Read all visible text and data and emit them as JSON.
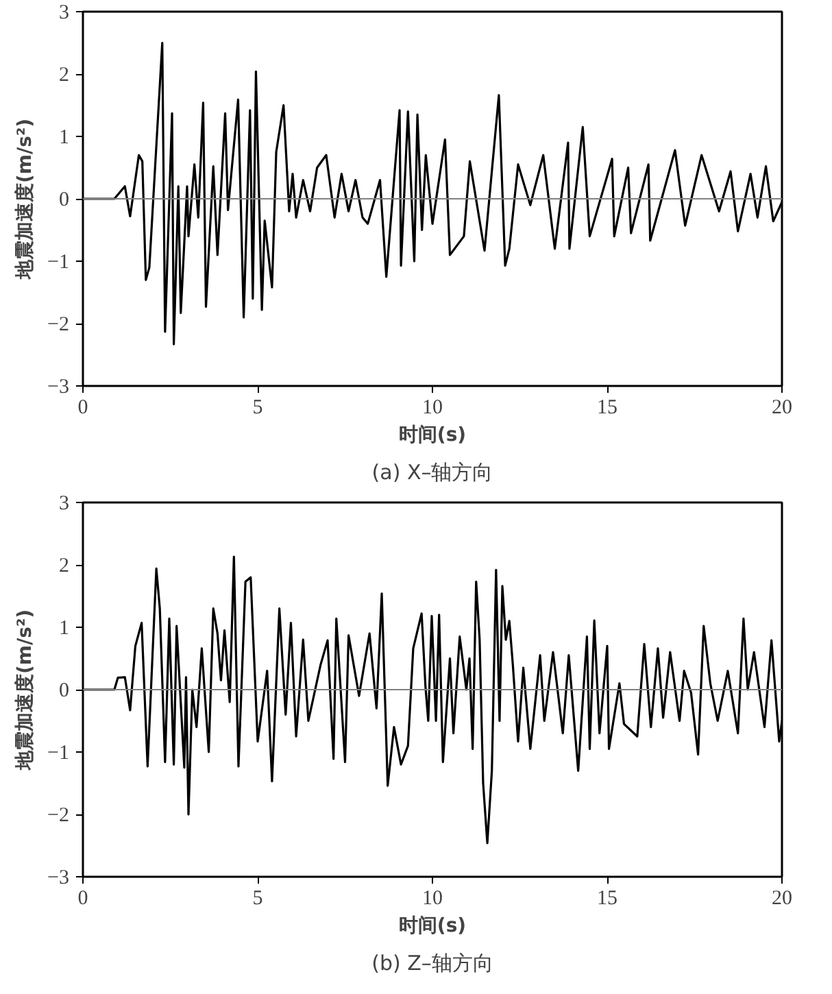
{
  "chart_data": [
    {
      "type": "line",
      "title": "(a) X–轴方向",
      "xlabel": "时间(s)",
      "ylabel": "地震加速度(m/s²)",
      "xlim": [
        0,
        20
      ],
      "ylim": [
        -3,
        3
      ],
      "xticks": [
        0,
        5,
        10,
        15,
        20
      ],
      "yticks": [
        -3,
        -2,
        -1,
        0,
        1,
        2,
        3
      ],
      "line_style": "solid",
      "ref_lines": [
        {
          "axis": "y",
          "value": 0,
          "color": "#808080"
        }
      ],
      "series": [
        {
          "color": "#000000",
          "x": [
            0,
            0.9,
            1.2,
            1.35,
            1.6,
            1.7,
            1.8,
            1.9,
            2.27,
            2.35,
            2.55,
            2.6,
            2.73,
            2.8,
            2.98,
            3.02,
            3.19,
            3.3,
            3.44,
            3.52,
            3.73,
            3.85,
            4.07,
            4.15,
            4.44,
            4.6,
            4.78,
            4.86,
            4.95,
            5.12,
            5.2,
            5.41,
            5.53,
            5.74,
            5.9,
            6.0,
            6.1,
            6.3,
            6.5,
            6.7,
            6.96,
            7.2,
            7.4,
            7.6,
            7.8,
            8.0,
            8.15,
            8.5,
            8.68,
            9.06,
            9.1,
            9.3,
            9.48,
            9.57,
            9.7,
            9.81,
            10.0,
            10.36,
            10.5,
            10.9,
            11.07,
            11.49,
            11.9,
            12.08,
            12.2,
            12.45,
            12.8,
            13.17,
            13.5,
            13.88,
            13.92,
            14.3,
            14.5,
            15.14,
            15.2,
            15.6,
            15.68,
            16.18,
            16.23,
            16.94,
            17.23,
            17.7,
            18.2,
            18.53,
            18.74,
            19.1,
            19.3,
            19.54,
            19.75,
            20
          ],
          "values": [
            0,
            0,
            0.2,
            -0.28,
            0.7,
            0.6,
            -1.3,
            -1.1,
            2.5,
            -2.13,
            1.37,
            -2.33,
            0.2,
            -1.83,
            0.2,
            -0.6,
            0.55,
            -0.3,
            1.54,
            -1.73,
            0.52,
            -0.9,
            1.37,
            -0.18,
            1.59,
            -1.9,
            1.42,
            -1.6,
            2.04,
            -1.78,
            -0.35,
            -1.42,
            0.75,
            1.5,
            -0.2,
            0.4,
            -0.3,
            0.3,
            -0.2,
            0.5,
            0.7,
            -0.3,
            0.4,
            -0.2,
            0.3,
            -0.3,
            -0.4,
            0.3,
            -1.25,
            1.42,
            -1.07,
            1.4,
            -1.0,
            1.35,
            -0.5,
            0.7,
            -0.4,
            0.95,
            -0.9,
            -0.6,
            0.6,
            -0.83,
            1.66,
            -1.07,
            -0.8,
            0.55,
            -0.1,
            0.7,
            -0.8,
            0.9,
            -0.8,
            1.15,
            -0.6,
            0.64,
            -0.6,
            0.5,
            -0.55,
            0.55,
            -0.67,
            0.78,
            -0.43,
            0.7,
            -0.2,
            0.44,
            -0.52,
            0.4,
            -0.3,
            0.52,
            -0.36,
            -0.05
          ]
        }
      ]
    },
    {
      "type": "line",
      "title": "(b) Z–轴方向",
      "xlabel": "时间(s)",
      "ylabel": "地震加速度(m/s²)",
      "xlim": [
        0,
        20
      ],
      "ylim": [
        -3,
        3
      ],
      "xticks": [
        0,
        5,
        10,
        15,
        20
      ],
      "yticks": [
        -3,
        -2,
        -1,
        0,
        1,
        2,
        3
      ],
      "line_style": "solid",
      "ref_lines": [
        {
          "axis": "y",
          "value": 0,
          "color": "#808080"
        }
      ],
      "series": [
        {
          "color": "#000000",
          "x": [
            0,
            0.9,
            1.0,
            1.2,
            1.35,
            1.5,
            1.68,
            1.85,
            2.1,
            2.2,
            2.35,
            2.47,
            2.6,
            2.68,
            2.9,
            2.95,
            3.02,
            3.13,
            3.25,
            3.4,
            3.6,
            3.73,
            3.85,
            3.95,
            4.05,
            4.2,
            4.32,
            4.45,
            4.65,
            4.8,
            5.0,
            5.27,
            5.41,
            5.62,
            5.8,
            5.95,
            6.1,
            6.3,
            6.45,
            6.8,
            7.0,
            7.17,
            7.25,
            7.5,
            7.6,
            7.9,
            8.2,
            8.4,
            8.55,
            8.72,
            8.9,
            9.1,
            9.3,
            9.45,
            9.69,
            9.8,
            9.88,
            9.98,
            10.1,
            10.19,
            10.3,
            10.5,
            10.6,
            10.78,
            10.97,
            11.06,
            11.15,
            11.25,
            11.35,
            11.45,
            11.57,
            11.7,
            11.82,
            11.92,
            12.0,
            12.1,
            12.2,
            12.3,
            12.45,
            12.6,
            12.8,
            13.08,
            13.2,
            13.45,
            13.73,
            13.9,
            14.17,
            14.42,
            14.5,
            14.63,
            14.78,
            15.0,
            15.05,
            15.35,
            15.48,
            15.86,
            16.06,
            16.25,
            16.45,
            16.6,
            16.8,
            17.07,
            17.2,
            17.4,
            17.6,
            17.76,
            17.95,
            18.16,
            18.45,
            18.74,
            18.9,
            19.02,
            19.2,
            19.5,
            19.7,
            19.92,
            20
          ],
          "values": [
            0,
            0,
            0.19,
            0.2,
            -0.33,
            0.7,
            1.07,
            -1.23,
            1.94,
            1.3,
            -1.16,
            1.14,
            -1.2,
            1.02,
            -1.25,
            0.2,
            -2.0,
            0,
            -0.6,
            0.66,
            -1.0,
            1.3,
            0.9,
            0.15,
            0.95,
            -0.2,
            2.13,
            -1.23,
            1.73,
            1.8,
            -0.83,
            0.3,
            -1.47,
            1.3,
            -0.4,
            1.07,
            -0.75,
            0.8,
            -0.5,
            0.4,
            0.79,
            -1.11,
            1.14,
            -1.16,
            0.87,
            -0.1,
            0.9,
            -0.3,
            1.54,
            -1.54,
            -0.6,
            -1.2,
            -0.9,
            0.66,
            1.22,
            0.05,
            -0.5,
            1.18,
            -0.5,
            1.2,
            -1.16,
            0.5,
            -0.7,
            0.85,
            0,
            0.5,
            -0.95,
            1.73,
            0.8,
            -1.5,
            -2.46,
            -1.3,
            1.92,
            -0.5,
            1.66,
            0.8,
            1.1,
            0.4,
            -0.83,
            0.35,
            -0.95,
            0.55,
            -0.5,
            0.6,
            -0.7,
            0.55,
            -1.3,
            0.85,
            -0.95,
            1.11,
            -0.7,
            0.7,
            -0.95,
            0.1,
            -0.55,
            -0.75,
            0.73,
            -0.6,
            0.66,
            -0.45,
            0.6,
            -0.5,
            0.3,
            -0.05,
            -1.04,
            1.02,
            0.1,
            -0.5,
            0.3,
            -0.7,
            1.14,
            0,
            0.6,
            -0.6,
            0.79,
            -0.83,
            -0.5
          ]
        }
      ]
    }
  ]
}
